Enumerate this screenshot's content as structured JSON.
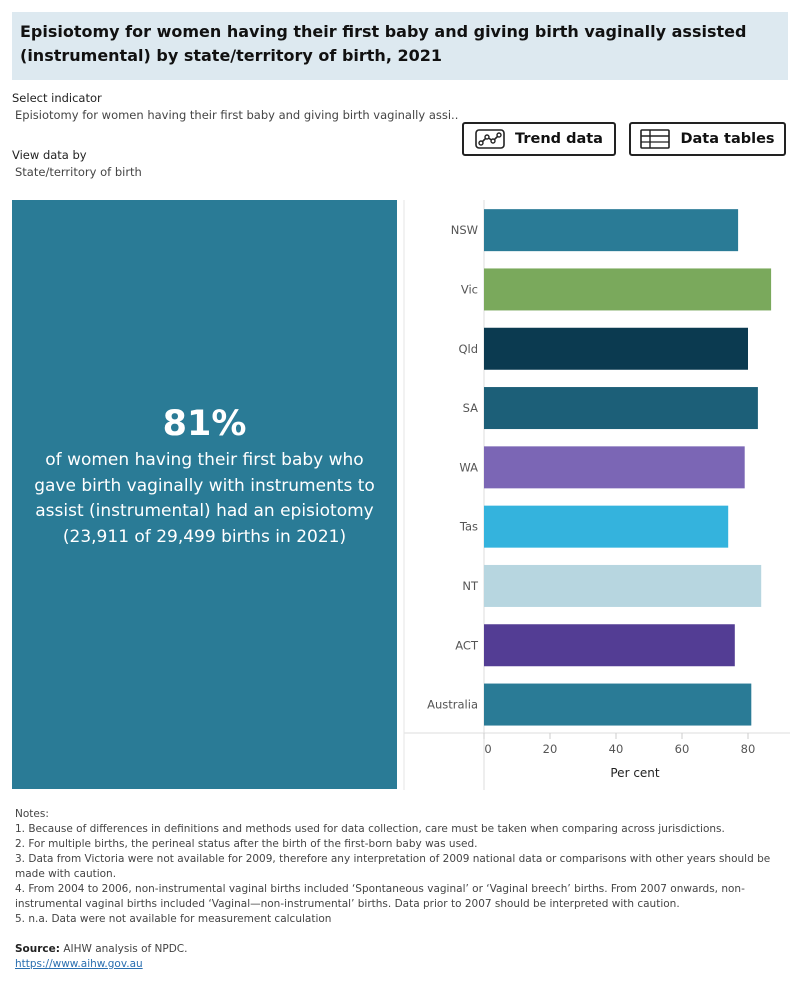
{
  "title": "Episiotomy for women having their first baby and giving birth vaginally assisted (instrumental) by state/territory of birth, 2021",
  "controls": {
    "indicator_label": "Select indicator",
    "indicator_value": "Episiotomy for women having their first baby and giving birth vaginally assi..",
    "view_label": "View data by",
    "view_value": "State/territory of birth"
  },
  "buttons": {
    "trend": "Trend data",
    "tables": "Data tables"
  },
  "kpi": {
    "value": "81%",
    "description": "of women having their first baby who gave birth vaginally with instruments to assist (instrumental) had an episiotomy (23,911 of 29,499 births in 2021)"
  },
  "chart_data": {
    "type": "bar",
    "orientation": "horizontal",
    "categories": [
      "NSW",
      "Vic",
      "Qld",
      "SA",
      "WA",
      "Tas",
      "NT",
      "ACT",
      "Australia"
    ],
    "values": [
      77,
      87,
      80,
      83,
      79,
      74,
      84,
      76,
      81
    ],
    "colors": [
      "#2a7b96",
      "#7aa95c",
      "#0b3a50",
      "#1c5f78",
      "#7b66b5",
      "#34b3dd",
      "#b7d6e0",
      "#533d94",
      "#2a7b96"
    ],
    "xlabel": "Per cent",
    "ylabel": "",
    "xticks": [
      0,
      20,
      40,
      60,
      80
    ],
    "xlim": [
      0,
      90
    ],
    "grid": false,
    "legend": "none"
  },
  "notes": {
    "heading": "Notes:",
    "items": [
      "1. Because of differences in definitions and methods used for data collection, care must be taken when comparing across jurisdictions.",
      "2. For multiple births, the perineal status after the birth of the first-born baby was used.",
      "3. Data from Victoria were not available for 2009, therefore any interpretation of 2009 national data or comparisons with other years should be made with caution.",
      "4. From 2004 to 2006, non-instrumental vaginal births included ‘Spontaneous vaginal’ or ‘Vaginal breech’ births. From 2007 onwards, non-instrumental vaginal births included ‘Vaginal—non-instrumental’ births. Data prior to 2007 should be interpreted with caution.",
      "5. n.a. Data were not available for measurement calculation"
    ]
  },
  "source": {
    "label": "Source:",
    "text": " AIHW analysis of NPDC.",
    "link": "https://www.aihw.gov.au"
  }
}
